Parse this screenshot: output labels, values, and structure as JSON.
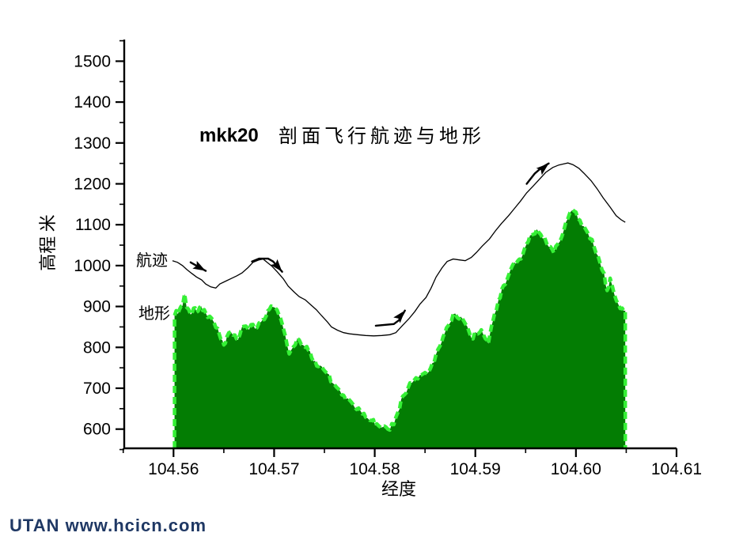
{
  "page": {
    "logo_text": "UTAN  www.hcicn.com",
    "logo_color": "#1f3864",
    "background": "#ffffff"
  },
  "chart_data": {
    "type": "area",
    "title_model": "mkk20",
    "title_text": "剖面飞行航迹与地形",
    "xlabel": "经度",
    "ylabel": "高程 米",
    "xlim": [
      104.5551,
      104.61
    ],
    "ylim": [
      553,
      1553
    ],
    "grid": false,
    "axis_color": "#000000",
    "x_major_ticks": [
      104.56,
      104.57,
      104.58,
      104.59,
      104.6,
      104.61
    ],
    "x_tick_labels": [
      "104.56",
      "104.57",
      "104.58",
      "104.59",
      "104.60",
      "104.61"
    ],
    "x_minor_ticks": [
      104.555,
      104.565,
      104.575,
      104.585,
      104.595,
      104.605
    ],
    "y_major_ticks": [
      600,
      700,
      800,
      900,
      1000,
      1100,
      1200,
      1300,
      1400,
      1500
    ],
    "y_minor_ticks": [
      550,
      650,
      750,
      850,
      950,
      1050,
      1150,
      1250,
      1350,
      1450,
      1550
    ],
    "series": [
      {
        "name": "航迹",
        "type": "line",
        "color": "#000000",
        "points": [
          [
            104.5599,
            1012
          ],
          [
            104.5604,
            1008
          ],
          [
            104.5609,
            1000
          ],
          [
            104.5613,
            991
          ],
          [
            104.5618,
            981
          ],
          [
            104.5623,
            972
          ],
          [
            104.5628,
            965
          ],
          [
            104.5632,
            955
          ],
          [
            104.5637,
            948
          ],
          [
            104.5642,
            945
          ],
          [
            104.5646,
            955
          ],
          [
            104.5652,
            962
          ],
          [
            104.5657,
            968
          ],
          [
            104.5663,
            975
          ],
          [
            104.5668,
            982
          ],
          [
            104.5674,
            995
          ],
          [
            104.5679,
            1008
          ],
          [
            104.5685,
            1014
          ],
          [
            104.5689,
            1016
          ],
          [
            104.5694,
            1006
          ],
          [
            104.5698,
            998
          ],
          [
            104.5703,
            985
          ],
          [
            104.5709,
            968
          ],
          [
            104.5714,
            950
          ],
          [
            104.572,
            935
          ],
          [
            104.5725,
            924
          ],
          [
            104.5731,
            916
          ],
          [
            104.5736,
            905
          ],
          [
            104.5742,
            892
          ],
          [
            104.5747,
            878
          ],
          [
            104.5753,
            862
          ],
          [
            104.5757,
            850
          ],
          [
            104.5763,
            842
          ],
          [
            104.5769,
            836
          ],
          [
            104.5775,
            833
          ],
          [
            104.5783,
            831
          ],
          [
            104.5791,
            829
          ],
          [
            104.5799,
            828
          ],
          [
            104.5807,
            829
          ],
          [
            104.5815,
            831
          ],
          [
            104.5821,
            836
          ],
          [
            104.5827,
            852
          ],
          [
            104.5834,
            870
          ],
          [
            104.584,
            888
          ],
          [
            104.5845,
            906
          ],
          [
            104.5851,
            922
          ],
          [
            104.5856,
            945
          ],
          [
            104.5861,
            972
          ],
          [
            104.5867,
            995
          ],
          [
            104.5872,
            1010
          ],
          [
            104.5878,
            1016
          ],
          [
            104.5884,
            1014
          ],
          [
            104.589,
            1012
          ],
          [
            104.5896,
            1020
          ],
          [
            104.5901,
            1032
          ],
          [
            104.5907,
            1048
          ],
          [
            104.5914,
            1065
          ],
          [
            104.592,
            1085
          ],
          [
            104.5926,
            1103
          ],
          [
            104.5933,
            1122
          ],
          [
            104.5939,
            1140
          ],
          [
            104.5945,
            1158
          ],
          [
            104.5951,
            1178
          ],
          [
            104.5958,
            1196
          ],
          [
            104.5964,
            1212
          ],
          [
            104.597,
            1228
          ],
          [
            104.5977,
            1240
          ],
          [
            104.5983,
            1246
          ],
          [
            104.5988,
            1249
          ],
          [
            104.5992,
            1251
          ],
          [
            104.5997,
            1247
          ],
          [
            104.6003,
            1238
          ],
          [
            104.6008,
            1226
          ],
          [
            104.6015,
            1208
          ],
          [
            104.6021,
            1188
          ],
          [
            104.6027,
            1166
          ],
          [
            104.6034,
            1143
          ],
          [
            104.604,
            1122
          ],
          [
            104.6045,
            1112
          ],
          [
            104.6049,
            1106
          ]
        ]
      },
      {
        "name": "地形",
        "type": "area",
        "fill": "#037d03",
        "edge": "#35f035",
        "points": [
          [
            104.5601,
            878
          ],
          [
            104.5606,
            893
          ],
          [
            104.5609,
            902
          ],
          [
            104.5611,
            931
          ],
          [
            104.5613,
            898
          ],
          [
            104.5617,
            880
          ],
          [
            104.562,
            896
          ],
          [
            104.5623,
            886
          ],
          [
            104.5626,
            898
          ],
          [
            104.5629,
            890
          ],
          [
            104.5632,
            884
          ],
          [
            104.5636,
            876
          ],
          [
            104.564,
            862
          ],
          [
            104.5644,
            846
          ],
          [
            104.5647,
            820
          ],
          [
            104.565,
            806
          ],
          [
            104.5653,
            826
          ],
          [
            104.5657,
            838
          ],
          [
            104.5661,
            830
          ],
          [
            104.5664,
            818
          ],
          [
            104.5668,
            850
          ],
          [
            104.5672,
            852
          ],
          [
            104.5675,
            843
          ],
          [
            104.5679,
            856
          ],
          [
            104.5683,
            848
          ],
          [
            104.5687,
            862
          ],
          [
            104.5692,
            876
          ],
          [
            104.5697,
            901
          ],
          [
            104.5701,
            897
          ],
          [
            104.5705,
            878
          ],
          [
            104.5708,
            858
          ],
          [
            104.5711,
            830
          ],
          [
            104.5715,
            784
          ],
          [
            104.5719,
            801
          ],
          [
            104.5723,
            822
          ],
          [
            104.5727,
            807
          ],
          [
            104.5731,
            800
          ],
          [
            104.5734,
            793
          ],
          [
            104.5739,
            766
          ],
          [
            104.5744,
            753
          ],
          [
            104.5749,
            746
          ],
          [
            104.5753,
            736
          ],
          [
            104.5758,
            713
          ],
          [
            104.5764,
            698
          ],
          [
            104.5769,
            683
          ],
          [
            104.5775,
            671
          ],
          [
            104.578,
            653
          ],
          [
            104.5786,
            644
          ],
          [
            104.5791,
            629
          ],
          [
            104.5797,
            621
          ],
          [
            104.5802,
            613
          ],
          [
            104.5808,
            605
          ],
          [
            104.5813,
            600
          ],
          [
            104.5819,
            611
          ],
          [
            104.5823,
            641
          ],
          [
            104.5828,
            681
          ],
          [
            104.5833,
            700
          ],
          [
            104.5837,
            713
          ],
          [
            104.5843,
            723
          ],
          [
            104.5848,
            735
          ],
          [
            104.5854,
            741
          ],
          [
            104.5859,
            763
          ],
          [
            104.5863,
            796
          ],
          [
            104.5868,
            826
          ],
          [
            104.5873,
            853
          ],
          [
            104.5878,
            881
          ],
          [
            104.5882,
            873
          ],
          [
            104.5887,
            871
          ],
          [
            104.5892,
            851
          ],
          [
            104.5896,
            823
          ],
          [
            104.5901,
            836
          ],
          [
            104.5906,
            843
          ],
          [
            104.591,
            821
          ],
          [
            104.5913,
            809
          ],
          [
            104.5916,
            851
          ],
          [
            104.5919,
            881
          ],
          [
            104.5923,
            916
          ],
          [
            104.5928,
            951
          ],
          [
            104.5933,
            976
          ],
          [
            104.5937,
            1001
          ],
          [
            104.5942,
            1011
          ],
          [
            104.5947,
            1026
          ],
          [
            104.5951,
            1053
          ],
          [
            104.5956,
            1075
          ],
          [
            104.5961,
            1089
          ],
          [
            104.5965,
            1076
          ],
          [
            104.5969,
            1068
          ],
          [
            104.5973,
            1046
          ],
          [
            104.5978,
            1031
          ],
          [
            104.5982,
            1053
          ],
          [
            104.5986,
            1071
          ],
          [
            104.599,
            1106
          ],
          [
            104.5994,
            1129
          ],
          [
            104.5997,
            1136
          ],
          [
            104.6,
            1131
          ],
          [
            104.6004,
            1111
          ],
          [
            104.6008,
            1096
          ],
          [
            104.6012,
            1079
          ],
          [
            104.6016,
            1064
          ],
          [
            104.602,
            1031
          ],
          [
            104.6024,
            1006
          ],
          [
            104.6028,
            981
          ],
          [
            104.6031,
            939
          ],
          [
            104.6034,
            969
          ],
          [
            104.6038,
            931
          ],
          [
            104.6042,
            906
          ],
          [
            104.6046,
            896
          ],
          [
            104.6049,
            890
          ]
        ]
      }
    ],
    "arrows": [
      {
        "tail": [
          [
            104.5617,
            1008
          ],
          [
            104.5624,
            998
          ]
        ],
        "tip": [
          104.5632,
          987
        ],
        "angle": 29
      },
      {
        "tail": [
          [
            104.5678,
            1010
          ],
          [
            104.5685,
            1017
          ],
          [
            104.5694,
            1017
          ],
          [
            104.5699,
            1010
          ]
        ],
        "tip": [
          104.5708,
          985
        ],
        "angle": 50
      },
      {
        "tail": [
          [
            104.5801,
            853
          ],
          [
            104.5819,
            857
          ],
          [
            104.5825,
            868
          ]
        ],
        "tip": [
          104.583,
          890
        ],
        "angle": -50
      },
      {
        "tail": [
          [
            104.5951,
            1200
          ],
          [
            104.5959,
            1225
          ],
          [
            104.5966,
            1240
          ]
        ],
        "tip": [
          104.5973,
          1250
        ],
        "angle": -40
      }
    ]
  }
}
